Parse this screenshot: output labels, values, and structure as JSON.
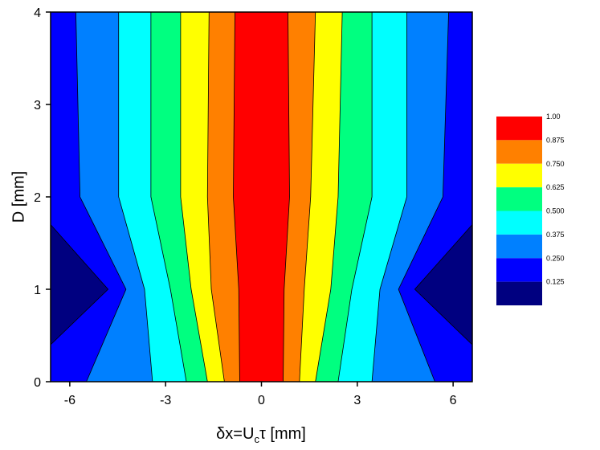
{
  "chart_data": {
    "type": "contour",
    "xlabel": {
      "text": "δx=U",
      "sub": "c",
      "rest": "τ [mm]"
    },
    "ylabel": "D [mm]",
    "xlim": [
      -6.6,
      6.6
    ],
    "ylim": [
      0,
      4
    ],
    "xticks": [
      -6,
      -3,
      0,
      3,
      6
    ],
    "yticks": [
      0,
      1,
      2,
      3,
      4
    ],
    "background": "#0000ff",
    "contours": [
      {
        "level": 0.125,
        "color": "#000080",
        "left": {
          "x": [
            -6.6,
            -4.8,
            -6.6
          ],
          "y": [
            0.4,
            1,
            1.7
          ]
        },
        "right": {
          "x": [
            6.6,
            4.8,
            6.6
          ],
          "y": [
            0.4,
            1,
            1.7
          ]
        }
      },
      {
        "level": 0.25,
        "color": "#0080ff",
        "left": {
          "x": [
            -5.48,
            -4.24,
            -5.68,
            -5.81
          ],
          "y": [
            0,
            1,
            2,
            4
          ]
        },
        "right": {
          "x": [
            5.43,
            4.29,
            5.68,
            5.86
          ],
          "y": [
            0,
            1,
            2,
            4
          ]
        }
      },
      {
        "level": 0.375,
        "color": "#00ffff",
        "left": {
          "x": [
            -3.41,
            -3.66,
            -4.47,
            -4.47
          ],
          "y": [
            0,
            1,
            2,
            4
          ]
        },
        "right": {
          "x": [
            3.46,
            3.71,
            4.55,
            4.55
          ],
          "y": [
            0,
            1,
            2,
            4
          ]
        }
      },
      {
        "level": 0.5,
        "color": "#00ff80",
        "left": {
          "x": [
            -2.35,
            -2.85,
            -3.46,
            -3.46
          ],
          "y": [
            0,
            1,
            2,
            4
          ]
        },
        "right": {
          "x": [
            2.4,
            2.83,
            3.46,
            3.46
          ],
          "y": [
            0,
            1,
            2,
            4
          ]
        }
      },
      {
        "level": 0.625,
        "color": "#ffff00",
        "left": {
          "x": [
            -1.69,
            -2.2,
            -2.53,
            -2.53
          ],
          "y": [
            0,
            1,
            2,
            4
          ]
        },
        "right": {
          "x": [
            1.69,
            2.17,
            2.4,
            2.53
          ],
          "y": [
            0,
            1,
            2,
            4
          ]
        }
      },
      {
        "level": 0.75,
        "color": "#ff8000",
        "left": {
          "x": [
            -1.16,
            -1.57,
            -1.69,
            -1.64
          ],
          "y": [
            0,
            1,
            2,
            4
          ]
        },
        "right": {
          "x": [
            1.19,
            1.34,
            1.54,
            1.69
          ],
          "y": [
            0,
            1,
            2,
            4
          ]
        }
      },
      {
        "level": 0.875,
        "color": "#ff0000",
        "left": {
          "x": [
            -0.68,
            -0.71,
            -0.88,
            -0.83
          ],
          "y": [
            0,
            1,
            2,
            4
          ]
        },
        "right": {
          "x": [
            0.68,
            0.71,
            0.88,
            0.83
          ],
          "y": [
            0,
            1,
            2,
            4
          ]
        }
      }
    ],
    "colorbar": [
      {
        "value": 1.0,
        "label": "1.00",
        "color": "#ff0000"
      },
      {
        "value": 0.875,
        "label": "0.875",
        "color": "#ff8000"
      },
      {
        "value": 0.75,
        "label": "0.750",
        "color": "#ffff00"
      },
      {
        "value": 0.625,
        "label": "0.625",
        "color": "#00ff80"
      },
      {
        "value": 0.5,
        "label": "0.500",
        "color": "#00ffff"
      },
      {
        "value": 0.375,
        "label": "0.375",
        "color": "#0080ff"
      },
      {
        "value": 0.25,
        "label": "0.250",
        "color": "#0000ff"
      },
      {
        "value": 0.125,
        "label": "0.125",
        "color": "#000080"
      }
    ]
  }
}
